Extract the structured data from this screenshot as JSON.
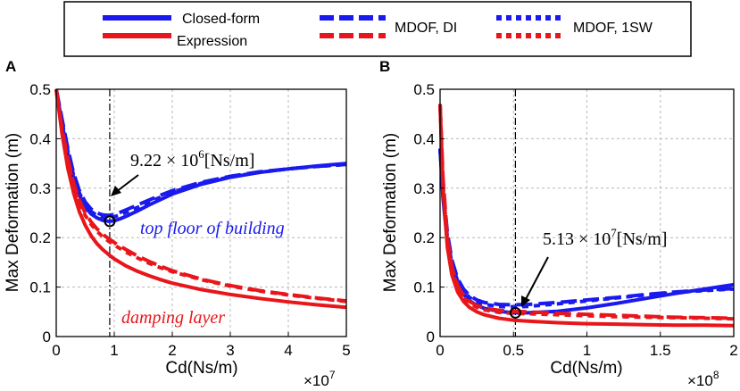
{
  "legend": {
    "closed_form_line1": "Closed-form",
    "closed_form_line2": "Expression",
    "mdof_di": "MDOF, DI",
    "mdof_1sw": "MDOF, 1SW",
    "colors": {
      "blue": "#1a1aee",
      "red": "#e8161b"
    }
  },
  "chart_data": [
    {
      "panel": "A",
      "type": "line",
      "xlabel": "Cd(Ns/m)",
      "ylabel": "Max Deformation (m)",
      "x_multiplier": "×10",
      "x_exponent": "7",
      "xlim": [
        0,
        5
      ],
      "ylim": [
        0,
        0.5
      ],
      "x_ticks": [
        0,
        1,
        2,
        3,
        4,
        5
      ],
      "y_ticks": [
        0,
        0.1,
        0.2,
        0.3,
        0.4,
        0.5
      ],
      "grid": true,
      "marker": {
        "x": 0.922,
        "y": 0.233
      },
      "annotation_value": "9.22 × 10",
      "annotation_exp": "6",
      "annotation_unit": "[Ns/m]",
      "label_top": "top floor of building",
      "label_bottom": "damping layer",
      "series": [
        {
          "name": "Closed-form, top floor",
          "color": "blue",
          "style": "solid",
          "x": [
            0,
            0.1,
            0.2,
            0.3,
            0.4,
            0.5,
            0.6,
            0.7,
            0.8,
            0.9,
            1.0,
            1.1,
            1.2,
            1.4,
            1.6,
            1.8,
            2.0,
            2.5,
            3.0,
            3.5,
            4.0,
            4.5,
            5.0
          ],
          "y": [
            0.5,
            0.43,
            0.37,
            0.32,
            0.285,
            0.262,
            0.248,
            0.24,
            0.235,
            0.233,
            0.234,
            0.238,
            0.243,
            0.254,
            0.266,
            0.277,
            0.288,
            0.308,
            0.322,
            0.332,
            0.339,
            0.345,
            0.35
          ]
        },
        {
          "name": "MDOF DI, top floor",
          "color": "blue",
          "style": "dashed",
          "x": [
            0,
            0.1,
            0.2,
            0.3,
            0.4,
            0.5,
            0.6,
            0.7,
            0.8,
            0.9,
            1.0,
            1.1,
            1.2,
            1.4,
            1.6,
            1.8,
            2.0,
            2.5,
            3.0,
            3.5,
            4.0,
            4.5,
            5.0
          ],
          "y": [
            0.5,
            0.44,
            0.38,
            0.33,
            0.295,
            0.272,
            0.258,
            0.25,
            0.246,
            0.245,
            0.247,
            0.251,
            0.256,
            0.266,
            0.276,
            0.286,
            0.295,
            0.312,
            0.324,
            0.333,
            0.339,
            0.344,
            0.348
          ]
        },
        {
          "name": "MDOF 1SW, top floor",
          "color": "blue",
          "style": "dotted",
          "x": [
            0,
            0.1,
            0.2,
            0.3,
            0.4,
            0.5,
            0.6,
            0.7,
            0.8,
            0.9,
            1.0,
            1.1,
            1.2,
            1.4,
            1.6,
            1.8,
            2.0,
            2.5,
            3.0,
            3.5,
            4.0,
            4.5,
            5.0
          ],
          "y": [
            0.5,
            0.435,
            0.375,
            0.325,
            0.29,
            0.267,
            0.253,
            0.245,
            0.241,
            0.24,
            0.242,
            0.246,
            0.251,
            0.261,
            0.272,
            0.282,
            0.292,
            0.31,
            0.323,
            0.332,
            0.339,
            0.344,
            0.348
          ]
        },
        {
          "name": "Closed-form, damping layer",
          "color": "red",
          "style": "solid",
          "x": [
            0,
            0.1,
            0.2,
            0.3,
            0.4,
            0.5,
            0.6,
            0.7,
            0.8,
            0.9,
            1.0,
            1.2,
            1.4,
            1.6,
            1.8,
            2.0,
            2.5,
            3.0,
            3.5,
            4.0,
            4.5,
            5.0
          ],
          "y": [
            0.5,
            0.41,
            0.34,
            0.29,
            0.252,
            0.225,
            0.204,
            0.188,
            0.176,
            0.166,
            0.157,
            0.143,
            0.132,
            0.123,
            0.115,
            0.108,
            0.095,
            0.085,
            0.077,
            0.07,
            0.064,
            0.059
          ]
        },
        {
          "name": "MDOF DI, damping layer",
          "color": "red",
          "style": "dashed",
          "x": [
            0,
            0.1,
            0.2,
            0.3,
            0.4,
            0.5,
            0.6,
            0.7,
            0.8,
            0.9,
            1.0,
            1.2,
            1.4,
            1.6,
            1.8,
            2.0,
            2.5,
            3.0,
            3.5,
            4.0,
            4.5,
            5.0
          ],
          "y": [
            0.5,
            0.42,
            0.36,
            0.31,
            0.275,
            0.25,
            0.232,
            0.218,
            0.207,
            0.198,
            0.19,
            0.176,
            0.163,
            0.152,
            0.142,
            0.133,
            0.116,
            0.103,
            0.093,
            0.085,
            0.078,
            0.072
          ]
        },
        {
          "name": "MDOF 1SW, damping layer",
          "color": "red",
          "style": "dotted",
          "x": [
            0,
            0.1,
            0.2,
            0.3,
            0.4,
            0.5,
            0.6,
            0.7,
            0.8,
            0.9,
            1.0,
            1.2,
            1.4,
            1.6,
            1.8,
            2.0,
            2.5,
            3.0,
            3.5,
            4.0,
            4.5,
            5.0
          ],
          "y": [
            0.5,
            0.415,
            0.355,
            0.305,
            0.27,
            0.245,
            0.227,
            0.213,
            0.202,
            0.193,
            0.185,
            0.171,
            0.159,
            0.148,
            0.139,
            0.131,
            0.115,
            0.102,
            0.092,
            0.084,
            0.077,
            0.071
          ]
        }
      ]
    },
    {
      "panel": "B",
      "type": "line",
      "xlabel": "Cd(Ns/m)",
      "ylabel": "Max Deformation (m)",
      "x_multiplier": "×10",
      "x_exponent": "8",
      "xlim": [
        0,
        2
      ],
      "ylim": [
        0,
        0.5
      ],
      "x_ticks": [
        0,
        0.5,
        1,
        1.5,
        2
      ],
      "y_ticks": [
        0,
        0.1,
        0.2,
        0.3,
        0.4,
        0.5
      ],
      "grid": true,
      "marker": {
        "x": 0.513,
        "y": 0.048
      },
      "annotation_value": "5.13 × 10",
      "annotation_exp": "7",
      "annotation_unit": "[Ns/m]",
      "series": [
        {
          "name": "Closed-form, top floor",
          "color": "blue",
          "style": "solid",
          "x": [
            0,
            0.02,
            0.05,
            0.08,
            0.12,
            0.16,
            0.2,
            0.25,
            0.3,
            0.4,
            0.5,
            0.6,
            0.8,
            1.0,
            1.2,
            1.4,
            1.6,
            1.8,
            2.0
          ],
          "y": [
            0.38,
            0.28,
            0.19,
            0.14,
            0.105,
            0.085,
            0.073,
            0.063,
            0.057,
            0.051,
            0.048,
            0.048,
            0.051,
            0.058,
            0.067,
            0.077,
            0.087,
            0.096,
            0.105
          ]
        },
        {
          "name": "MDOF DI, top floor",
          "color": "blue",
          "style": "dashed",
          "x": [
            0,
            0.02,
            0.05,
            0.08,
            0.12,
            0.16,
            0.2,
            0.25,
            0.3,
            0.4,
            0.5,
            0.6,
            0.8,
            1.0,
            1.2,
            1.4,
            1.6,
            1.8,
            2.0
          ],
          "y": [
            0.38,
            0.3,
            0.21,
            0.155,
            0.117,
            0.096,
            0.083,
            0.074,
            0.069,
            0.065,
            0.064,
            0.065,
            0.069,
            0.074,
            0.079,
            0.085,
            0.09,
            0.094,
            0.097
          ]
        },
        {
          "name": "MDOF 1SW, top floor",
          "color": "blue",
          "style": "dotted",
          "x": [
            0,
            0.02,
            0.05,
            0.08,
            0.12,
            0.16,
            0.2,
            0.25,
            0.3,
            0.4,
            0.5,
            0.6,
            0.8,
            1.0,
            1.2,
            1.4,
            1.6,
            1.8,
            2.0
          ],
          "y": [
            0.38,
            0.29,
            0.2,
            0.148,
            0.112,
            0.092,
            0.079,
            0.07,
            0.065,
            0.061,
            0.06,
            0.061,
            0.066,
            0.072,
            0.078,
            0.084,
            0.089,
            0.093,
            0.096
          ]
        },
        {
          "name": "Closed-form, damping layer",
          "color": "red",
          "style": "solid",
          "x": [
            0,
            0.02,
            0.05,
            0.08,
            0.12,
            0.16,
            0.2,
            0.25,
            0.3,
            0.4,
            0.5,
            0.6,
            0.8,
            1.0,
            1.2,
            1.4,
            1.6,
            1.8,
            2.0
          ],
          "y": [
            0.47,
            0.3,
            0.18,
            0.125,
            0.09,
            0.071,
            0.059,
            0.05,
            0.044,
            0.037,
            0.033,
            0.031,
            0.028,
            0.026,
            0.025,
            0.024,
            0.023,
            0.023,
            0.022
          ]
        },
        {
          "name": "MDOF DI, damping layer",
          "color": "red",
          "style": "dashed",
          "x": [
            0,
            0.02,
            0.05,
            0.08,
            0.12,
            0.16,
            0.2,
            0.25,
            0.3,
            0.4,
            0.5,
            0.6,
            0.8,
            1.0,
            1.2,
            1.4,
            1.6,
            1.8,
            2.0
          ],
          "y": [
            0.47,
            0.32,
            0.2,
            0.14,
            0.103,
            0.083,
            0.071,
            0.063,
            0.058,
            0.053,
            0.051,
            0.05,
            0.047,
            0.045,
            0.043,
            0.041,
            0.039,
            0.038,
            0.037
          ]
        },
        {
          "name": "MDOF 1SW, damping layer",
          "color": "red",
          "style": "dotted",
          "x": [
            0,
            0.02,
            0.05,
            0.08,
            0.12,
            0.16,
            0.2,
            0.25,
            0.3,
            0.4,
            0.5,
            0.6,
            0.8,
            1.0,
            1.2,
            1.4,
            1.6,
            1.8,
            2.0
          ],
          "y": [
            0.47,
            0.31,
            0.19,
            0.135,
            0.099,
            0.079,
            0.067,
            0.059,
            0.054,
            0.049,
            0.047,
            0.046,
            0.044,
            0.042,
            0.04,
            0.039,
            0.038,
            0.037,
            0.036
          ]
        }
      ]
    }
  ]
}
